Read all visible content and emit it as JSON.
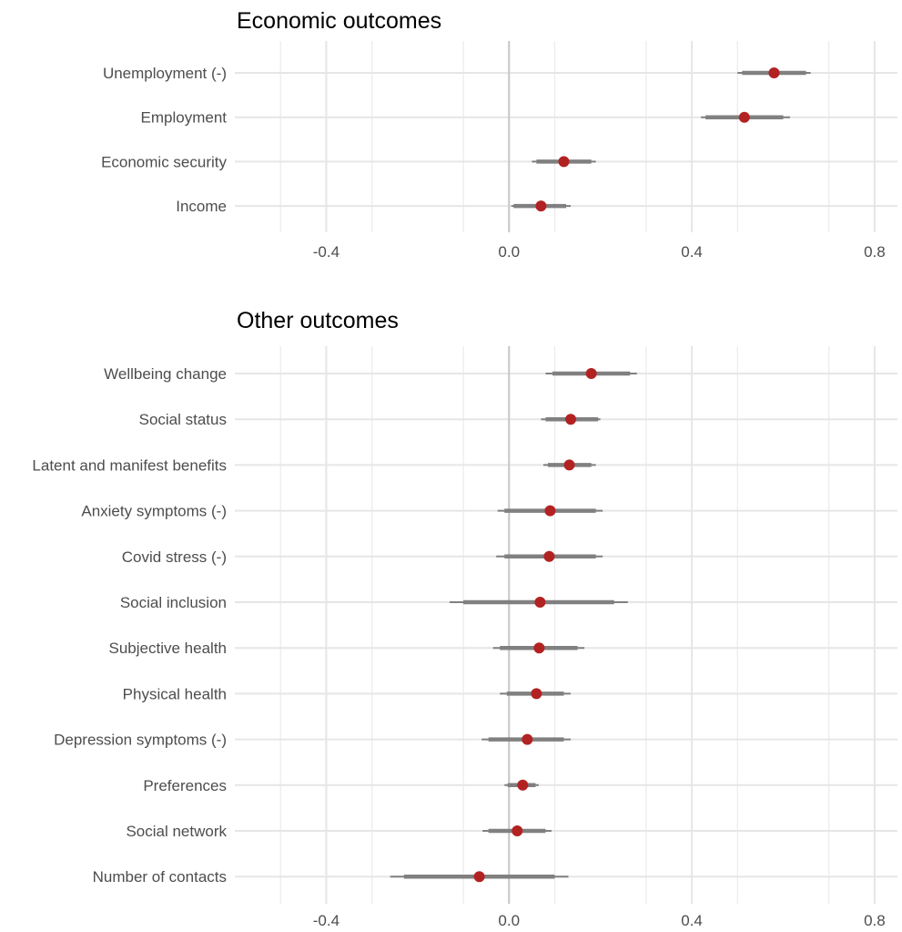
{
  "chart_data": [
    {
      "type": "forest",
      "title": "Economic outcomes",
      "xlim": [
        -0.6,
        0.85
      ],
      "xticks": [
        -0.4,
        0.0,
        0.4,
        0.8
      ],
      "xtick_labels": [
        "-0.4",
        "0.0",
        "0.4",
        "0.8"
      ],
      "zero_line": 0.0,
      "grid": true,
      "point_color": "#b22222",
      "interval_color": "#808080",
      "rows": [
        {
          "label": "Unemployment (-)",
          "estimate": 0.58,
          "ci90": [
            0.51,
            0.65
          ],
          "ci95": [
            0.5,
            0.66
          ]
        },
        {
          "label": "Employment",
          "estimate": 0.515,
          "ci90": [
            0.43,
            0.6
          ],
          "ci95": [
            0.42,
            0.615
          ]
        },
        {
          "label": "Economic security",
          "estimate": 0.12,
          "ci90": [
            0.06,
            0.18
          ],
          "ci95": [
            0.05,
            0.19
          ]
        },
        {
          "label": "Income",
          "estimate": 0.07,
          "ci90": [
            0.01,
            0.125
          ],
          "ci95": [
            0.005,
            0.135
          ]
        }
      ]
    },
    {
      "type": "forest",
      "title": "Other outcomes",
      "xlim": [
        -0.6,
        0.85
      ],
      "xticks": [
        -0.4,
        0.0,
        0.4,
        0.8
      ],
      "xtick_labels": [
        "-0.4",
        "0.0",
        "0.4",
        "0.8"
      ],
      "zero_line": 0.0,
      "grid": true,
      "point_color": "#b22222",
      "interval_color": "#808080",
      "rows": [
        {
          "label": "Wellbeing change",
          "estimate": 0.18,
          "ci90": [
            0.095,
            0.265
          ],
          "ci95": [
            0.08,
            0.28
          ]
        },
        {
          "label": "Social status",
          "estimate": 0.135,
          "ci90": [
            0.08,
            0.195
          ],
          "ci95": [
            0.07,
            0.2
          ]
        },
        {
          "label": "Latent and manifest benefits",
          "estimate": 0.132,
          "ci90": [
            0.085,
            0.18
          ],
          "ci95": [
            0.075,
            0.19
          ]
        },
        {
          "label": "Anxiety symptoms (-)",
          "estimate": 0.09,
          "ci90": [
            -0.01,
            0.19
          ],
          "ci95": [
            -0.025,
            0.205
          ]
        },
        {
          "label": "Covid stress (-)",
          "estimate": 0.088,
          "ci90": [
            -0.01,
            0.19
          ],
          "ci95": [
            -0.028,
            0.205
          ]
        },
        {
          "label": "Social inclusion",
          "estimate": 0.068,
          "ci90": [
            -0.1,
            0.23
          ],
          "ci95": [
            -0.13,
            0.26
          ]
        },
        {
          "label": "Subjective health",
          "estimate": 0.066,
          "ci90": [
            -0.02,
            0.15
          ],
          "ci95": [
            -0.035,
            0.165
          ]
        },
        {
          "label": "Physical health",
          "estimate": 0.06,
          "ci90": [
            -0.005,
            0.12
          ],
          "ci95": [
            -0.02,
            0.135
          ]
        },
        {
          "label": "Depression symptoms (-)",
          "estimate": 0.04,
          "ci90": [
            -0.045,
            0.12
          ],
          "ci95": [
            -0.06,
            0.135
          ]
        },
        {
          "label": "Preferences",
          "estimate": 0.03,
          "ci90": [
            -0.003,
            0.058
          ],
          "ci95": [
            -0.01,
            0.065
          ]
        },
        {
          "label": "Social network",
          "estimate": 0.018,
          "ci90": [
            -0.045,
            0.08
          ],
          "ci95": [
            -0.058,
            0.093
          ]
        },
        {
          "label": "Number of contacts",
          "estimate": -0.065,
          "ci90": [
            -0.23,
            0.1
          ],
          "ci95": [
            -0.26,
            0.13
          ]
        }
      ]
    }
  ]
}
